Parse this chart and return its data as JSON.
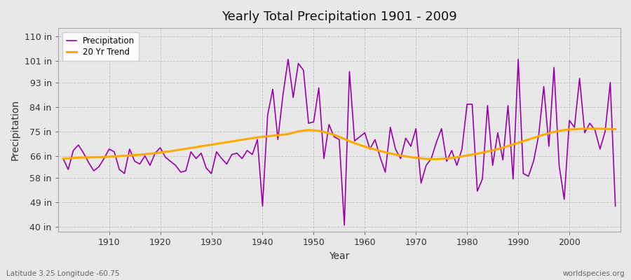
{
  "title": "Yearly Total Precipitation 1901 - 2009",
  "xlabel": "Year",
  "ylabel": "Precipitation",
  "subtitle_left": "Latitude 3.25 Longitude -60.75",
  "subtitle_right": "worldspecies.org",
  "bg_color": "#e8e8e8",
  "plot_bg_color": "#e8e8e8",
  "line_color": "#9900aa",
  "trend_color": "#ffaa00",
  "yticks": [
    40,
    49,
    58,
    66,
    75,
    84,
    93,
    101,
    110
  ],
  "ytick_labels": [
    "40 in",
    "49 in",
    "58 in",
    "66 in",
    "75 in",
    "84 in",
    "93 in",
    "101 in",
    "110 in"
  ],
  "ylim": [
    38,
    113
  ],
  "xlim": [
    1900,
    2010
  ],
  "xticks": [
    1910,
    1920,
    1930,
    1940,
    1950,
    1960,
    1970,
    1980,
    1990,
    2000
  ],
  "years": [
    1901,
    1902,
    1903,
    1904,
    1905,
    1906,
    1907,
    1908,
    1909,
    1910,
    1911,
    1912,
    1913,
    1914,
    1915,
    1916,
    1917,
    1918,
    1919,
    1920,
    1921,
    1922,
    1923,
    1924,
    1925,
    1926,
    1927,
    1928,
    1929,
    1930,
    1931,
    1932,
    1933,
    1934,
    1935,
    1936,
    1937,
    1938,
    1939,
    1940,
    1941,
    1942,
    1943,
    1944,
    1945,
    1946,
    1947,
    1948,
    1949,
    1950,
    1951,
    1952,
    1953,
    1954,
    1955,
    1956,
    1957,
    1958,
    1959,
    1960,
    1961,
    1962,
    1963,
    1964,
    1965,
    1966,
    1967,
    1968,
    1969,
    1970,
    1971,
    1972,
    1973,
    1974,
    1975,
    1976,
    1977,
    1978,
    1979,
    1980,
    1981,
    1982,
    1983,
    1984,
    1985,
    1986,
    1987,
    1988,
    1989,
    1990,
    1991,
    1992,
    1993,
    1994,
    1995,
    1996,
    1997,
    1998,
    1999,
    2000,
    2001,
    2002,
    2003,
    2004,
    2005,
    2006,
    2007,
    2008,
    2009
  ],
  "precip": [
    65.0,
    61.0,
    68.0,
    70.0,
    67.0,
    63.5,
    60.5,
    62.0,
    65.0,
    68.5,
    67.5,
    61.0,
    59.5,
    68.5,
    64.0,
    63.0,
    66.0,
    62.5,
    67.0,
    69.0,
    65.5,
    64.0,
    62.5,
    60.0,
    60.5,
    67.5,
    65.0,
    67.0,
    61.5,
    59.5,
    67.5,
    65.0,
    63.0,
    66.5,
    67.0,
    65.0,
    68.0,
    66.5,
    72.0,
    47.5,
    81.0,
    90.5,
    72.0,
    88.5,
    101.5,
    87.5,
    100.0,
    97.5,
    78.0,
    78.5,
    91.0,
    65.0,
    77.5,
    73.0,
    72.0,
    40.5,
    97.0,
    71.5,
    73.0,
    74.5,
    68.5,
    72.0,
    65.5,
    60.0,
    76.5,
    68.5,
    65.0,
    72.5,
    69.5,
    76.0,
    56.0,
    62.5,
    65.0,
    71.0,
    76.0,
    64.0,
    68.0,
    62.5,
    68.5,
    85.0,
    85.0,
    53.0,
    57.5,
    84.5,
    62.5,
    74.5,
    64.5,
    84.5,
    57.5,
    101.5,
    59.5,
    58.5,
    64.0,
    73.5,
    91.5,
    69.5,
    98.5,
    62.5,
    50.0,
    79.0,
    76.5,
    94.5,
    74.5,
    78.0,
    75.5,
    68.5,
    75.0,
    93.0,
    47.5
  ],
  "trend": [
    65.0,
    65.1,
    65.2,
    65.3,
    65.4,
    65.4,
    65.5,
    65.5,
    65.6,
    65.7,
    65.8,
    65.9,
    66.0,
    66.1,
    66.3,
    66.4,
    66.6,
    66.8,
    67.0,
    67.2,
    67.5,
    67.7,
    68.0,
    68.3,
    68.6,
    68.9,
    69.2,
    69.5,
    69.8,
    70.1,
    70.4,
    70.7,
    71.0,
    71.3,
    71.6,
    71.9,
    72.2,
    72.5,
    72.8,
    73.0,
    73.2,
    73.4,
    73.6,
    73.8,
    74.0,
    74.5,
    75.0,
    75.3,
    75.5,
    75.4,
    75.2,
    74.8,
    74.3,
    73.7,
    73.0,
    72.2,
    71.4,
    70.7,
    70.0,
    69.4,
    68.8,
    68.3,
    67.8,
    67.3,
    66.9,
    66.5,
    66.1,
    65.8,
    65.5,
    65.3,
    65.1,
    64.9,
    64.8,
    64.8,
    64.9,
    65.0,
    65.2,
    65.5,
    65.8,
    66.1,
    66.5,
    66.8,
    67.2,
    67.6,
    68.0,
    68.5,
    69.0,
    69.6,
    70.2,
    70.8,
    71.4,
    72.0,
    72.6,
    73.2,
    73.8,
    74.3,
    74.8,
    75.2,
    75.5,
    75.7,
    75.8,
    75.9,
    76.0,
    76.0,
    76.0,
    76.0,
    75.9,
    75.9,
    75.8
  ]
}
